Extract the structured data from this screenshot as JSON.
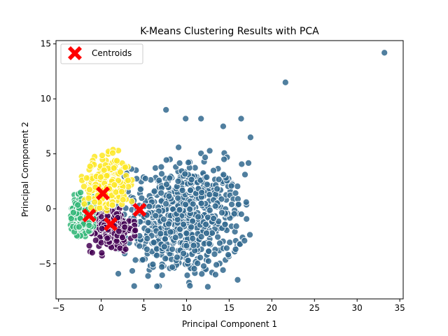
{
  "chart_data": {
    "type": "scatter",
    "title": "K-Means Clustering Results with PCA",
    "xlabel": "Principal Component 1",
    "ylabel": "Principal Component 2",
    "xlim": [
      -5.3,
      35.4
    ],
    "ylim": [
      -8.2,
      15.3
    ],
    "xticks": [
      -5,
      0,
      5,
      10,
      15,
      20,
      25,
      30,
      35
    ],
    "yticks": [
      -5,
      0,
      5,
      10,
      15
    ],
    "grid": false,
    "legend": {
      "placement": "top-left",
      "entries": [
        "Centroids"
      ]
    },
    "colors": {
      "cluster_0": "#440154",
      "cluster_1": "#31688e",
      "cluster_2": "#35b779",
      "cluster_3": "#fde725",
      "centroid": "#ff0000",
      "point_edge": "#ffffff"
    },
    "clusters": [
      {
        "color_key": "cluster_1",
        "region": {
          "cx": 9.5,
          "cy": -1.0,
          "sx": 3.6,
          "sy": 2.6,
          "xmin": 1.5,
          "xmax": 17.5,
          "ymin": -7.2,
          "ymax": 6.5
        },
        "count": 700
      },
      {
        "color_key": "cluster_0",
        "region": {
          "cx": 1.0,
          "cy": -1.8,
          "sx": 1.3,
          "sy": 1.0,
          "xmin": -1.5,
          "xmax": 4.0,
          "ymin": -4.3,
          "ymax": 0.3
        },
        "count": 260
      },
      {
        "color_key": "cluster_2",
        "region": {
          "cx": -2.2,
          "cy": -0.6,
          "sx": 0.8,
          "sy": 0.9,
          "xmin": -3.6,
          "xmax": -0.5,
          "ymin": -2.6,
          "ymax": 2.0
        },
        "count": 260
      },
      {
        "color_key": "cluster_3",
        "region": {
          "cx": 0.6,
          "cy": 2.2,
          "sx": 1.3,
          "sy": 1.2,
          "xmin": -2.5,
          "xmax": 3.8,
          "ymin": -0.2,
          "ymax": 6.3
        },
        "count": 260
      }
    ],
    "outliers": [
      {
        "x": 33.2,
        "y": 14.2
      },
      {
        "x": 21.6,
        "y": 11.5
      },
      {
        "x": 17.0,
        "y": 0.6
      },
      {
        "x": 17.5,
        "y": 6.5
      },
      {
        "x": 16.4,
        "y": 8.2
      },
      {
        "x": 14.3,
        "y": 7.5
      },
      {
        "x": 14.4,
        "y": 4.5
      },
      {
        "x": 16.8,
        "y": -2.9
      },
      {
        "x": 16.1,
        "y": 0.4
      },
      {
        "x": 15.3,
        "y": 0.4
      },
      {
        "x": 11.7,
        "y": 8.2
      },
      {
        "x": 9.9,
        "y": 8.2
      },
      {
        "x": 7.6,
        "y": 9.0
      },
      {
        "x": 13.5,
        "y": -5.1
      },
      {
        "x": 12.5,
        "y": -7.1
      },
      {
        "x": 10.4,
        "y": -7.0
      }
    ],
    "centroids": [
      {
        "x": 4.5,
        "y": -0.1
      },
      {
        "x": 0.2,
        "y": 1.4
      },
      {
        "x": -1.4,
        "y": -0.6
      },
      {
        "x": 1.1,
        "y": -1.4
      }
    ]
  }
}
